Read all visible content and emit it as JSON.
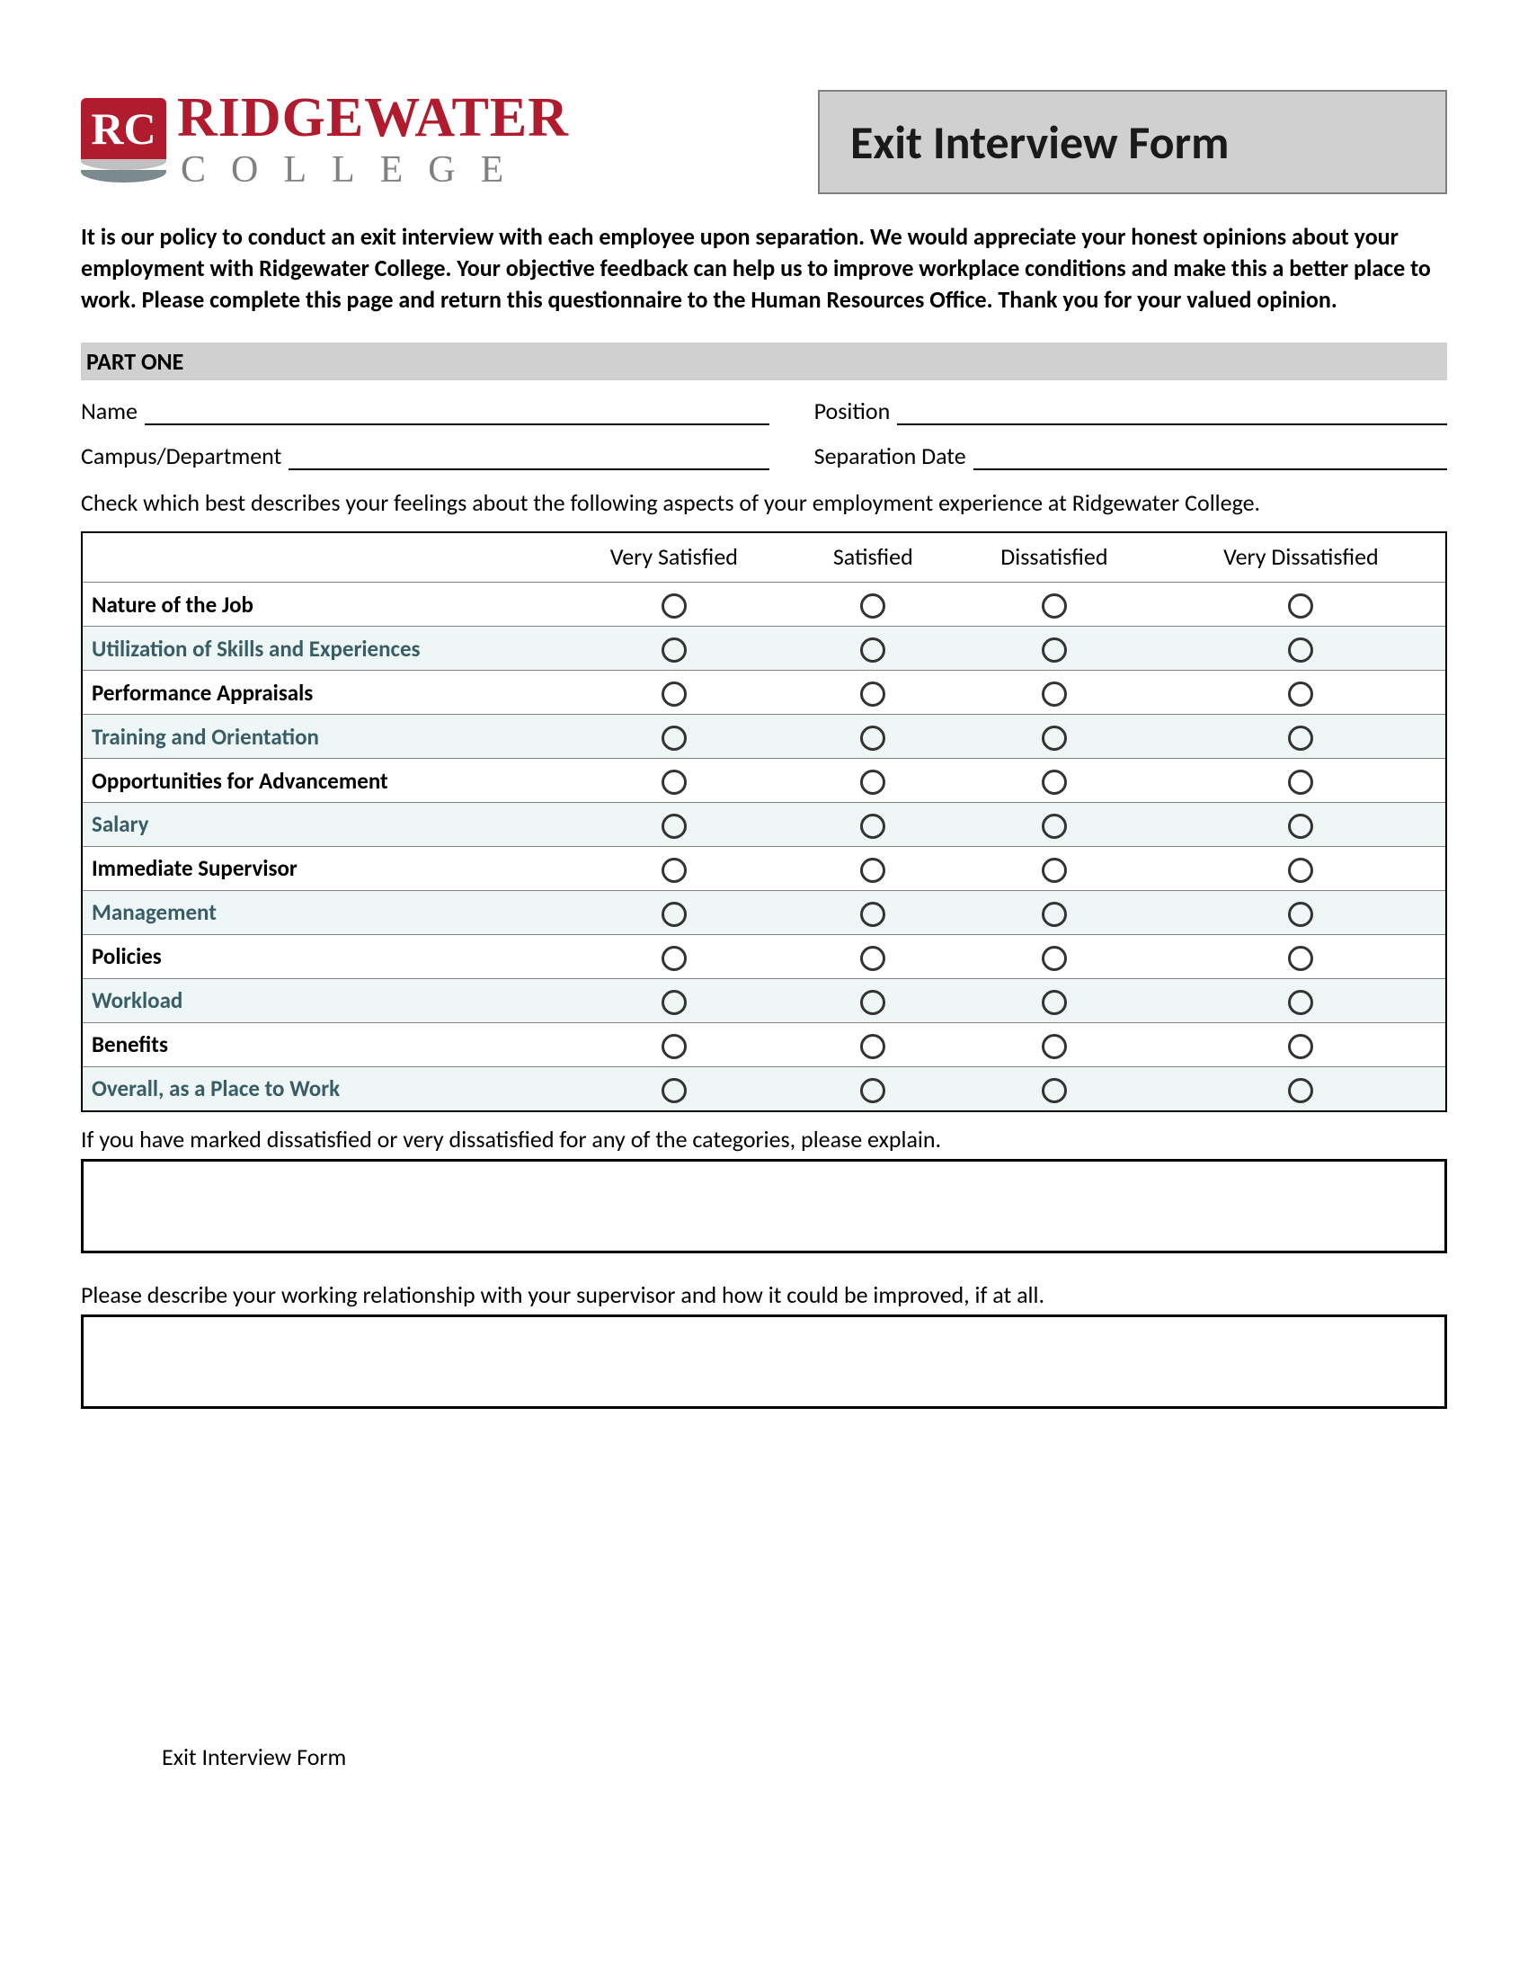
{
  "logo": {
    "badge_text": "RC",
    "main": "RIDGEWATER",
    "sub": "COLLEGE",
    "brand_color": "#b01c2e",
    "sub_color": "#808080"
  },
  "title": "Exit Interview Form",
  "intro": "It is our policy to conduct an exit interview with each employee upon separation. We would appreciate your honest opinions about your employment with Ridgewater College. Your objective feedback can help us to improve workplace conditions and make this a better place to work. Please complete this page and return this questionnaire to the Human Resources Office. Thank you for your valued opinion.",
  "section_one": "PART ONE",
  "fields": {
    "name_label": "Name",
    "position_label": "Position",
    "campus_label": "Campus/Department",
    "separation_label": "Separation Date"
  },
  "instructions": "Check which best describes your feelings about the following aspects of your employment experience at Ridgewater College.",
  "rating": {
    "columns": [
      "Very Satisfied",
      "Satisfied",
      "Dissatisfied",
      "Very Dissatisfied"
    ],
    "rows": [
      {
        "label": "Nature of the Job",
        "alt": false
      },
      {
        "label": "Utilization of Skills and Experiences",
        "alt": true
      },
      {
        "label": "Performance Appraisals",
        "alt": false
      },
      {
        "label": "Training and Orientation",
        "alt": true
      },
      {
        "label": "Opportunities for Advancement",
        "alt": false
      },
      {
        "label": "Salary",
        "alt": true
      },
      {
        "label": "Immediate Supervisor",
        "alt": false
      },
      {
        "label": "Management",
        "alt": true
      },
      {
        "label": "Policies",
        "alt": false
      },
      {
        "label": "Workload",
        "alt": true
      },
      {
        "label": "Benefits",
        "alt": false
      },
      {
        "label": "Overall, as a Place to Work",
        "alt": true
      }
    ],
    "alt_bg": "#eef7f5",
    "alt_text_color": "#385d66"
  },
  "prompts": {
    "explain": "If you have marked dissatisfied or very dissatisfied for any of the categories, please explain.",
    "supervisor": "Please describe your working relationship with your supervisor and how it could be improved, if at all."
  },
  "footer": "Exit Interview Form"
}
